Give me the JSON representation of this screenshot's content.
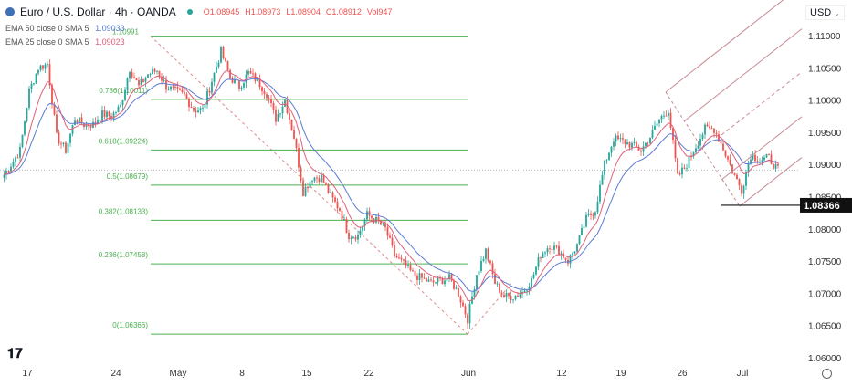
{
  "header": {
    "symbol": "Euro / U.S. Dollar · 4h · OANDA",
    "open": "O1.08945",
    "high": "H1.08973",
    "low": "L1.08904",
    "close": "C1.08912",
    "volume": "Vol947"
  },
  "indicators": [
    {
      "label": "EMA 50 close 0 SMA 5",
      "value": "1.09033",
      "color": "#5b7bd5"
    },
    {
      "label": "EMA 25 close 0 SMA 5",
      "value": "1.09023",
      "color": "#e0607a"
    }
  ],
  "currency_selector": "USD",
  "colors": {
    "up": "#26a69a",
    "down": "#ef5350",
    "fib": "#4caf50",
    "pitchfork": "#c98a92"
  },
  "chart_data": {
    "type": "candlestick",
    "ylim": [
      1.06,
      1.115
    ],
    "y_ticks": [
      "1.11000",
      "1.10500",
      "1.10000",
      "1.09500",
      "1.09000",
      "1.08500",
      "1.08000",
      "1.07500",
      "1.07000",
      "1.06500",
      "1.06000"
    ],
    "x_ticks": [
      "17",
      "24",
      "May",
      "8",
      "15",
      "22",
      "Jun",
      "12",
      "19",
      "26",
      "Jul"
    ],
    "closes": [
      1.0879,
      1.09,
      1.0922,
      1.1014,
      1.105,
      1.1056,
      1.0943,
      1.0922,
      1.0971,
      1.0962,
      1.0962,
      1.0978,
      1.0975,
      1.099,
      1.1049,
      1.1021,
      1.104,
      1.1046,
      1.1021,
      1.1014,
      1.1007,
      1.0985,
      1.0985,
      1.103,
      1.1075,
      1.1035,
      1.1021,
      1.1042,
      1.103,
      1.101,
      1.0971,
      1.1,
      1.0943,
      1.0858,
      1.088,
      1.088,
      1.0851,
      1.083,
      1.079,
      1.079,
      1.0822,
      1.0813,
      1.08,
      1.0759,
      1.0745,
      1.073,
      1.0723,
      1.0716,
      1.072,
      1.0723,
      1.07,
      1.066,
      1.073,
      1.0766,
      1.0716,
      1.0695,
      1.0695,
      1.0702,
      1.072,
      1.076,
      1.0775,
      1.0766,
      1.075,
      1.0775,
      1.0815,
      1.083,
      1.09,
      1.094,
      1.0936,
      1.093,
      1.0922,
      1.0943,
      1.097,
      1.0985,
      1.088,
      1.09,
      1.0929,
      1.0955,
      1.0955,
      1.0925,
      1.089,
      1.086,
      1.0915,
      1.0907,
      1.091,
      1.0891
    ],
    "fibonacci": [
      {
        "label": "1.10991",
        "price": 1.10991
      },
      {
        "label": "0.786(1.10011)",
        "price": 1.10011
      },
      {
        "label": "0.618(1.09224)",
        "price": 1.09224
      },
      {
        "label": "0.5(1.08679)",
        "price": 1.08679
      },
      {
        "label": "0.382(1.08133)",
        "price": 1.08133
      },
      {
        "label": "0.236(1.07458)",
        "price": 1.07458
      },
      {
        "label": "0(1.06366)",
        "price": 1.06366
      }
    ],
    "support": {
      "label": "1.08366",
      "price": 1.08366
    },
    "last_price": 1.08912
  }
}
